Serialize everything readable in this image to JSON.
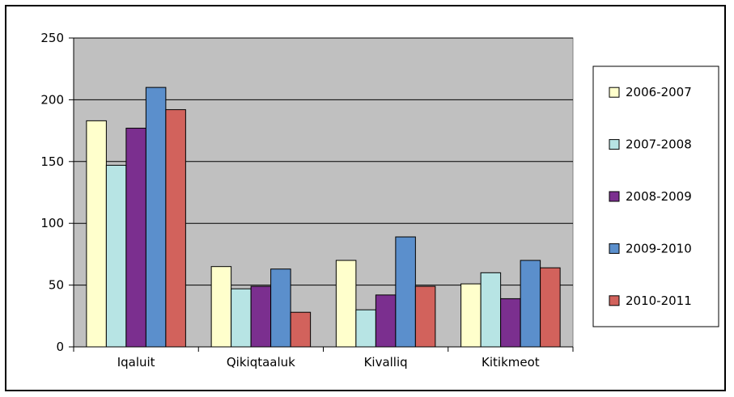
{
  "chart_data": {
    "type": "bar",
    "categories": [
      "Iqaluit",
      "Qikiqtaaluk",
      "Kivalliq",
      "Kitikmeot"
    ],
    "series": [
      {
        "name": "2006-2007",
        "color": "#ffffcc",
        "values": [
          183,
          65,
          70,
          51
        ]
      },
      {
        "name": "2007-2008",
        "color": "#b7e4e4",
        "values": [
          147,
          47,
          30,
          60
        ]
      },
      {
        "name": "2008-2009",
        "color": "#7b2f8f",
        "values": [
          177,
          49,
          42,
          39
        ]
      },
      {
        "name": "2009-2010",
        "color": "#5b8fcc",
        "values": [
          210,
          63,
          89,
          70
        ]
      },
      {
        "name": "2010-2011",
        "color": "#d2625c",
        "values": [
          192,
          28,
          49,
          64
        ]
      }
    ],
    "ylim": [
      0,
      250
    ],
    "yticks": [
      0,
      50,
      100,
      150,
      200,
      250
    ],
    "grid": true,
    "plot_background": "#c0c0c0",
    "legend_position": "right",
    "title": "",
    "xlabel": "",
    "ylabel": ""
  }
}
